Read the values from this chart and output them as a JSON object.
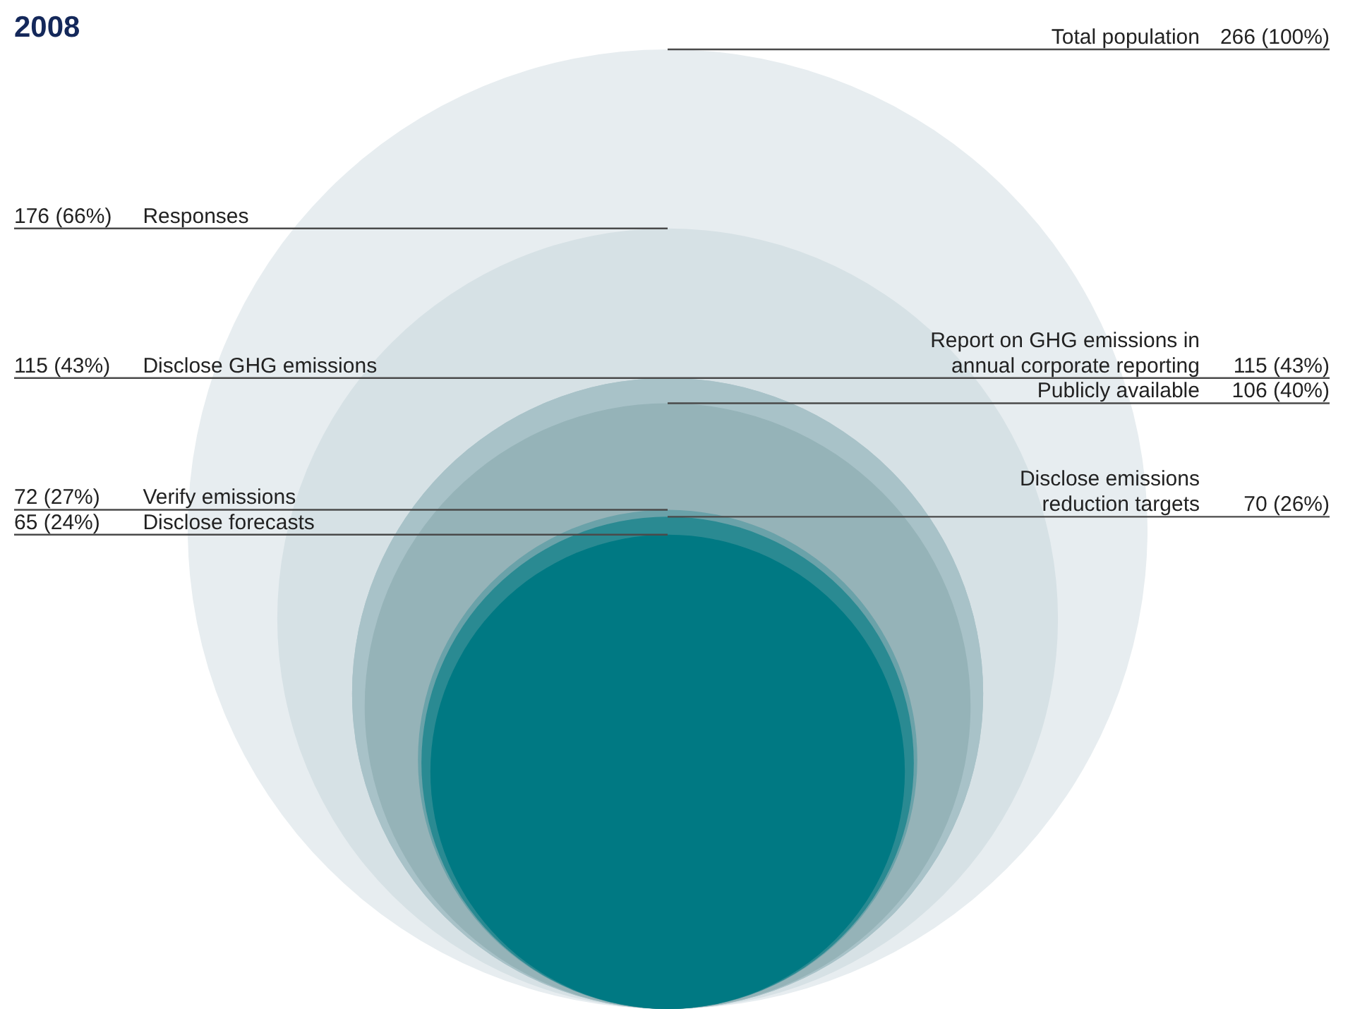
{
  "chart_data": {
    "type": "other",
    "title": "2008",
    "categories": [
      "Total population",
      "Responses",
      "Disclose GHG emissions",
      "Report on GHG emissions in annual corporate reporting",
      "Publicly available",
      "Verify emissions",
      "Disclose emissions reduction targets",
      "Disclose forecasts"
    ],
    "values": [
      266,
      176,
      115,
      115,
      106,
      72,
      70,
      65
    ],
    "value_labels": [
      "266 (100%)",
      "176 (66%)",
      "115 (43%)",
      "115 (43%)",
      "106 (40%)",
      "72 (27%)",
      "70 (26%)",
      "65 (24%)"
    ],
    "colors": [
      "#e7edf0",
      "#d6e1e5",
      "#a8c2c8",
      "#a8c2c8",
      "#95b3b8",
      "#6aa2a9",
      "#2a8a92",
      "#007983"
    ]
  }
}
